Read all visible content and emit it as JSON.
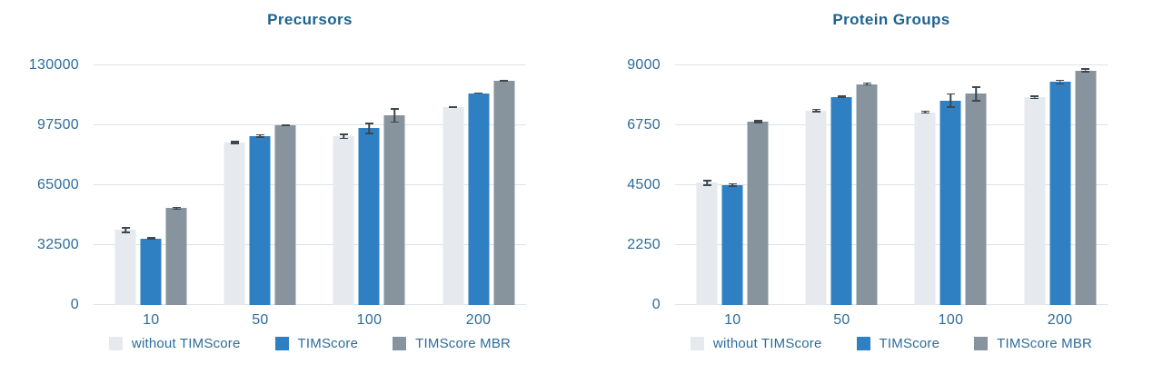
{
  "styles": {
    "background": "#ffffff",
    "title_color": "#1d6390",
    "tick_color": "#2c6c99",
    "legend_text_color": "#2c6c99",
    "gridline_color": "#dde3e8",
    "error_bar_color": "#3d474f",
    "series_colors": {
      "without_timscore": "#e6eaee",
      "timscore": "#2e80c3",
      "timscore_mbr": "#87949e"
    }
  },
  "chart_data": [
    {
      "type": "bar",
      "title": "Precursors",
      "categories": [
        "10",
        "50",
        "100",
        "200"
      ],
      "series": [
        {
          "name": "without TIMScore",
          "color": "#e6eaee",
          "values": [
            40700,
            88200,
            91500,
            107300
          ],
          "errors": [
            1600,
            900,
            1500,
            500
          ]
        },
        {
          "name": "TIMScore",
          "color": "#2e80c3",
          "values": [
            36200,
            91700,
            95800,
            114900
          ],
          "errors": [
            700,
            900,
            3000,
            400
          ]
        },
        {
          "name": "TIMScore MBR",
          "color": "#87949e",
          "values": [
            52500,
            97400,
            102800,
            121500
          ],
          "errors": [
            900,
            600,
            4000,
            500
          ]
        }
      ],
      "ylim": [
        0,
        130000
      ],
      "yticks": [
        0,
        32500,
        65000,
        97500,
        130000
      ],
      "grid": true,
      "error_bars": true,
      "legend_position": "bottom"
    },
    {
      "type": "bar",
      "title": "Protein Groups",
      "categories": [
        "10",
        "50",
        "100",
        "200"
      ],
      "series": [
        {
          "name": "without TIMScore",
          "color": "#e6eaee",
          "values": [
            4590,
            7310,
            7240,
            7800
          ],
          "errors": [
            110,
            70,
            60,
            70
          ]
        },
        {
          "name": "TIMScore",
          "color": "#2e80c3",
          "values": [
            4510,
            7820,
            7680,
            8370
          ],
          "errors": [
            70,
            40,
            270,
            90
          ]
        },
        {
          "name": "TIMScore MBR",
          "color": "#87949e",
          "values": [
            6890,
            8300,
            7930,
            8810
          ],
          "errors": [
            60,
            60,
            280,
            80
          ]
        }
      ],
      "ylim": [
        0,
        9000
      ],
      "yticks": [
        0,
        2250,
        4500,
        6750,
        9000
      ],
      "grid": true,
      "error_bars": true,
      "legend_position": "bottom"
    }
  ]
}
